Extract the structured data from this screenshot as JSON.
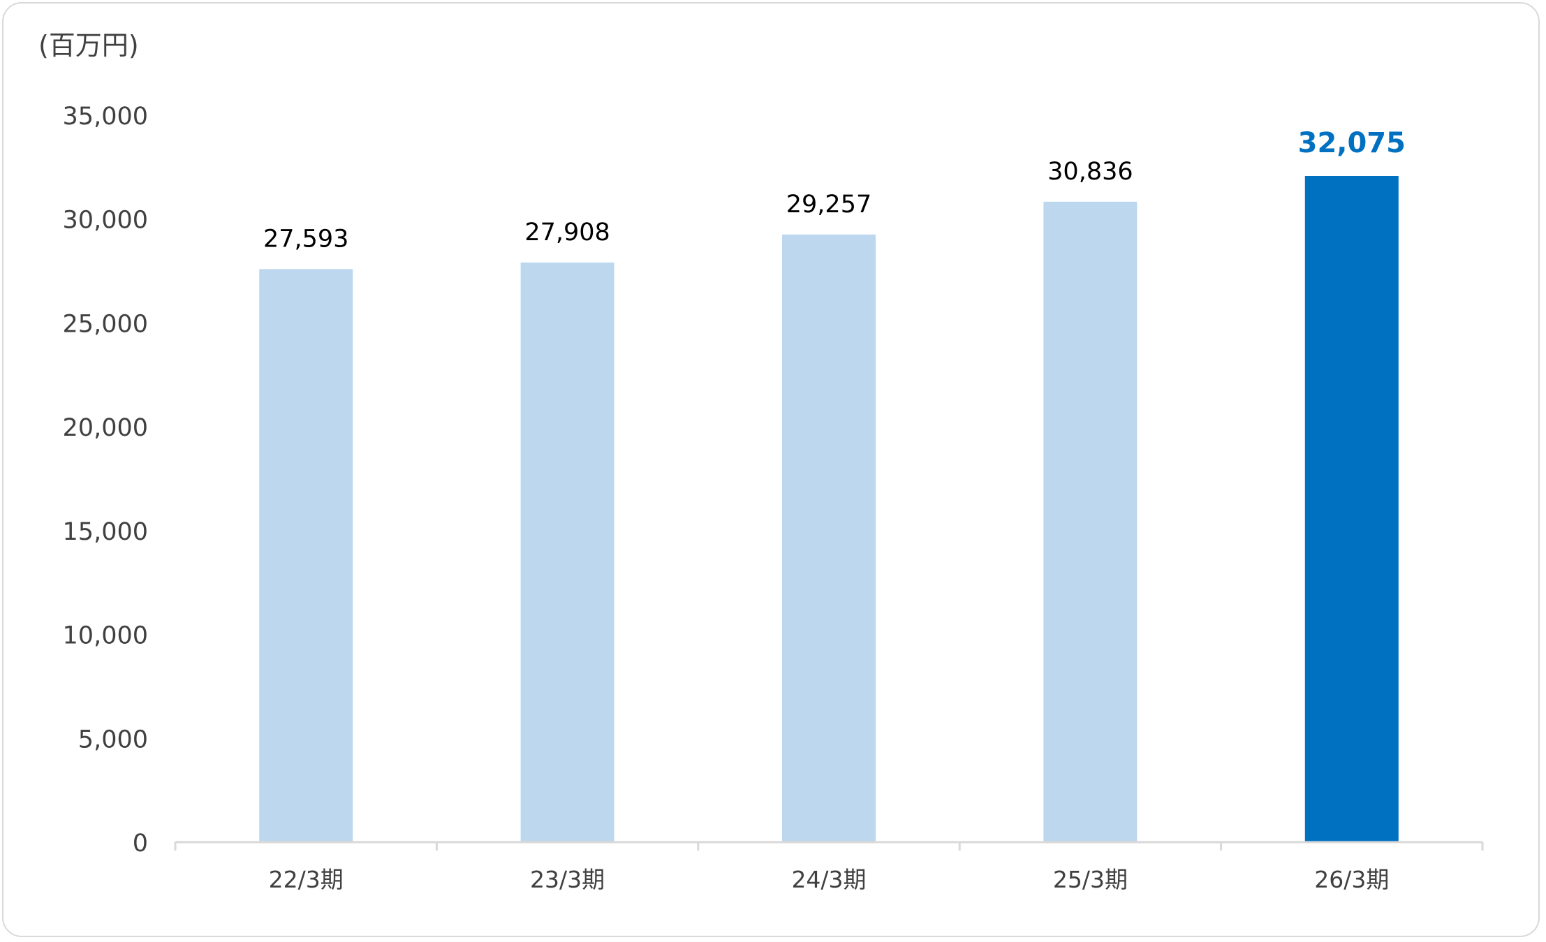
{
  "chart_data": {
    "type": "bar",
    "unit_label": "(百万円)",
    "categories": [
      "22/3期",
      "23/3期",
      "24/3期",
      "25/3期",
      "26/3期"
    ],
    "values": [
      27593,
      27908,
      29257,
      30836,
      32075
    ],
    "value_labels": [
      "27,593",
      "27,908",
      "29,257",
      "30,836",
      "32,075"
    ],
    "highlight_index": 4,
    "ylim": [
      0,
      35000
    ],
    "yticks": [
      0,
      5000,
      10000,
      15000,
      20000,
      25000,
      30000,
      35000
    ],
    "ytick_labels": [
      "0",
      "5,000",
      "10,000",
      "15,000",
      "20,000",
      "25,000",
      "30,000",
      "35,000"
    ],
    "grid": false,
    "colors": {
      "bar": "#bdd7ee",
      "highlight_bar": "#0070c0",
      "highlight_label": "#0070c0",
      "label": "#000000",
      "tick_label": "#404040",
      "axis": "#d9d9d9"
    }
  }
}
